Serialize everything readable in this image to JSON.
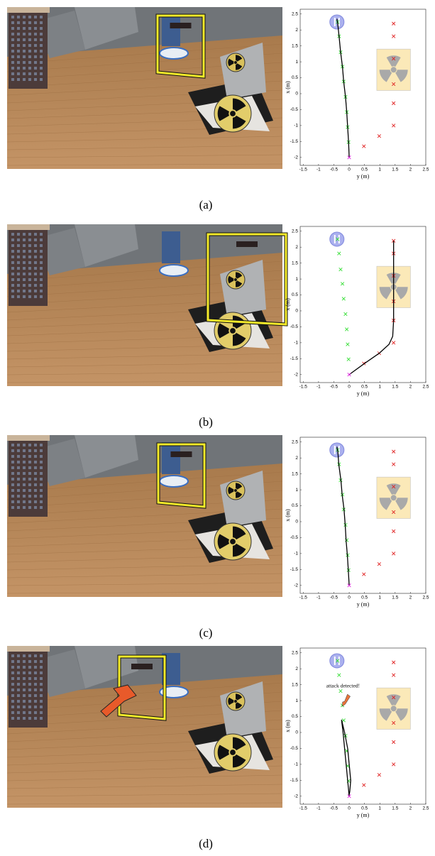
{
  "chart_data": [
    {
      "type": "scatter",
      "caption": "(a)",
      "xlabel": "y (m)",
      "ylabel": "x (m)",
      "xlim": [
        -1.6,
        2.5
      ],
      "ylim": [
        -2.25,
        2.65
      ],
      "xticks": [
        -1.5,
        -1,
        -0.5,
        0,
        0.5,
        1,
        1.5,
        2,
        2.5
      ],
      "yticks": [
        -2,
        -1.5,
        -1,
        -0.5,
        0,
        0.5,
        1,
        1.5,
        2,
        2.5
      ],
      "series": [
        {
          "mode": "marker",
          "color": "#33dd33",
          "x": [
            -0.38,
            -0.33,
            -0.28,
            -0.22,
            -0.18,
            -0.12,
            -0.08,
            -0.05,
            -0.02
          ],
          "values": [
            2.25,
            1.8,
            1.3,
            0.85,
            0.38,
            -0.1,
            -0.58,
            -1.05,
            -1.52
          ]
        },
        {
          "mode": "marker",
          "color": "#e02020",
          "x": [
            1.45,
            1.45,
            1.45,
            1.45,
            1.45,
            1.45,
            0.98,
            0.48
          ],
          "values": [
            2.2,
            1.8,
            1.1,
            0.3,
            -0.3,
            -1.0,
            -1.33,
            -1.65
          ]
        },
        {
          "mode": "line",
          "color": "#000000",
          "x": [
            0,
            -0.02,
            -0.05,
            -0.08,
            -0.12,
            -0.18,
            -0.22,
            -0.28,
            -0.33,
            -0.38,
            -0.4
          ],
          "values": [
            -2,
            -1.52,
            -1.05,
            -0.58,
            -0.1,
            0.38,
            0.85,
            1.3,
            1.8,
            2.25,
            2.35
          ]
        },
        {
          "mode": "marker",
          "color": "#dd22dd",
          "x": [
            0
          ],
          "values": [
            -2
          ]
        }
      ]
    },
    {
      "type": "scatter",
      "caption": "(b)",
      "xlabel": "y (m)",
      "ylabel": "x (m)",
      "xlim": [
        -1.6,
        2.5
      ],
      "ylim": [
        -2.25,
        2.65
      ],
      "xticks": [
        -1.5,
        -1,
        -0.5,
        0,
        0.5,
        1,
        1.5,
        2,
        2.5
      ],
      "yticks": [
        -2,
        -1.5,
        -1,
        -0.5,
        0,
        0.5,
        1,
        1.5,
        2,
        2.5
      ],
      "series": [
        {
          "mode": "marker",
          "color": "#33dd33",
          "x": [
            -0.38,
            -0.33,
            -0.28,
            -0.22,
            -0.18,
            -0.12,
            -0.08,
            -0.05,
            -0.02
          ],
          "values": [
            2.25,
            1.8,
            1.3,
            0.85,
            0.38,
            -0.1,
            -0.58,
            -1.05,
            -1.52
          ]
        },
        {
          "mode": "marker",
          "color": "#e02020",
          "x": [
            1.45,
            1.45,
            1.45,
            1.45,
            1.45,
            1.45,
            0.98,
            0.48
          ],
          "values": [
            2.2,
            1.8,
            1.1,
            0.3,
            -0.3,
            -1.0,
            -1.33,
            -1.65
          ]
        },
        {
          "mode": "line",
          "color": "#000000",
          "x": [
            0,
            0.5,
            0.98,
            1.3,
            1.42,
            1.45,
            1.45,
            1.45,
            1.45,
            1.45
          ],
          "values": [
            -2,
            -1.65,
            -1.33,
            -1.05,
            -0.8,
            -0.3,
            0.3,
            1.1,
            1.8,
            2.2
          ]
        },
        {
          "mode": "marker",
          "color": "#dd22dd",
          "x": [
            0
          ],
          "values": [
            -2
          ]
        }
      ]
    },
    {
      "type": "scatter",
      "caption": "(c)",
      "xlabel": "y (m)",
      "ylabel": "x (m)",
      "xlim": [
        -1.6,
        2.5
      ],
      "ylim": [
        -2.25,
        2.65
      ],
      "xticks": [
        -1.5,
        -1,
        -0.5,
        0,
        0.5,
        1,
        1.5,
        2,
        2.5
      ],
      "yticks": [
        -2,
        -1.5,
        -1,
        -0.5,
        0,
        0.5,
        1,
        1.5,
        2,
        2.5
      ],
      "series": [
        {
          "mode": "marker",
          "color": "#33dd33",
          "x": [
            -0.38,
            -0.33,
            -0.28,
            -0.22,
            -0.18,
            -0.12,
            -0.08,
            -0.05,
            -0.02
          ],
          "values": [
            2.25,
            1.8,
            1.3,
            0.85,
            0.38,
            -0.1,
            -0.58,
            -1.05,
            -1.52
          ]
        },
        {
          "mode": "marker",
          "color": "#e02020",
          "x": [
            1.45,
            1.45,
            1.45,
            1.45,
            1.45,
            1.45,
            0.98,
            0.48
          ],
          "values": [
            2.2,
            1.8,
            1.1,
            0.3,
            -0.3,
            -1.0,
            -1.33,
            -1.65
          ]
        },
        {
          "mode": "line",
          "color": "#000000",
          "x": [
            0,
            -0.03,
            -0.06,
            -0.1,
            -0.13,
            -0.17,
            -0.23,
            -0.27,
            -0.34,
            -0.37,
            -0.4
          ],
          "values": [
            -2,
            -1.5,
            -1.05,
            -0.6,
            -0.1,
            0.4,
            0.85,
            1.3,
            1.8,
            2.2,
            2.35
          ]
        },
        {
          "mode": "marker",
          "color": "#dd22dd",
          "x": [
            0
          ],
          "values": [
            -2
          ]
        }
      ]
    },
    {
      "type": "scatter",
      "caption": "(d)",
      "xlabel": "y (m)",
      "ylabel": "x (m)",
      "annotation": "attack detected!",
      "xlim": [
        -1.6,
        2.5
      ],
      "ylim": [
        -2.25,
        2.65
      ],
      "xticks": [
        -1.5,
        -1,
        -0.5,
        0,
        0.5,
        1,
        1.5,
        2,
        2.5
      ],
      "yticks": [
        -2,
        -1.5,
        -1,
        -0.5,
        0,
        0.5,
        1,
        1.5,
        2,
        2.5
      ],
      "series": [
        {
          "mode": "marker",
          "color": "#33dd33",
          "x": [
            -0.38,
            -0.33,
            -0.28,
            -0.22,
            -0.18,
            -0.12,
            -0.08,
            -0.05,
            -0.02
          ],
          "values": [
            2.25,
            1.8,
            1.3,
            0.85,
            0.38,
            -0.1,
            -0.58,
            -1.05,
            -1.52
          ]
        },
        {
          "mode": "marker",
          "color": "#e02020",
          "x": [
            1.45,
            1.45,
            1.45,
            1.45,
            1.45,
            1.45,
            0.98,
            0.48
          ],
          "values": [
            2.2,
            1.8,
            1.1,
            0.3,
            -0.3,
            -1.0,
            -1.33,
            -1.65
          ]
        },
        {
          "mode": "line",
          "color": "#000000",
          "x": [
            0,
            -0.05,
            -0.1,
            -0.15,
            -0.2,
            -0.25,
            -0.15,
            -0.05,
            0,
            0.05,
            0.02,
            0
          ],
          "values": [
            -2,
            -1.5,
            -1,
            -0.5,
            0,
            0.4,
            0,
            -0.5,
            -1,
            -1.5,
            -1.85,
            -1.95
          ]
        },
        {
          "mode": "marker",
          "color": "#dd22dd",
          "x": [
            0
          ],
          "values": [
            -2
          ]
        }
      ]
    }
  ]
}
